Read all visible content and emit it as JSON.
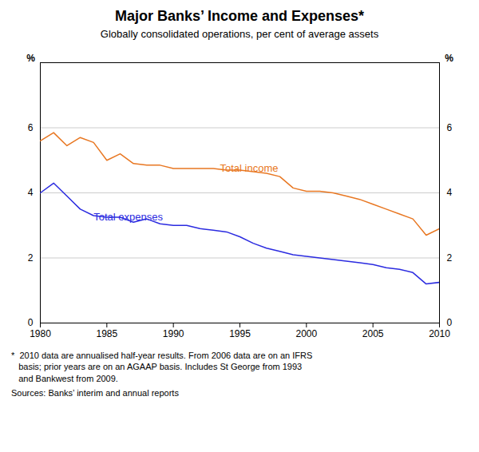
{
  "chart_data": {
    "type": "line",
    "title": "Major Banks’ Income and Expenses*",
    "subtitle": "Globally consolidated operations, per cent of average assets",
    "footnote": "*  2010 data are annualised half-year results. From 2006 data are on an IFRS\n   basis; prior years are on an AGAAP basis. Includes St George from 1993\n   and Bankwest from 2009.",
    "source": "Sources: Banks’ interim and annual reports",
    "ylabel": "%",
    "x": [
      1980,
      1981,
      1982,
      1983,
      1984,
      1985,
      1986,
      1987,
      1988,
      1989,
      1990,
      1991,
      1992,
      1993,
      1994,
      1995,
      1996,
      1997,
      1998,
      1999,
      2000,
      2001,
      2002,
      2003,
      2004,
      2005,
      2006,
      2007,
      2008,
      2009,
      2010
    ],
    "series": [
      {
        "name": "Total income",
        "color": "#E87722",
        "values": [
          5.6,
          5.85,
          5.45,
          5.7,
          5.55,
          5.0,
          5.2,
          4.9,
          4.85,
          4.85,
          4.75,
          4.75,
          4.75,
          4.75,
          4.7,
          4.7,
          4.65,
          4.6,
          4.5,
          4.15,
          4.05,
          4.05,
          4.0,
          3.9,
          3.8,
          3.65,
          3.5,
          3.35,
          3.2,
          2.7,
          2.9
        ]
      },
      {
        "name": "Total expenses",
        "color": "#2B2BE0",
        "values": [
          4.0,
          4.3,
          3.9,
          3.5,
          3.3,
          3.25,
          3.25,
          3.1,
          3.2,
          3.05,
          3.0,
          3.0,
          2.9,
          2.85,
          2.8,
          2.65,
          2.45,
          2.3,
          2.2,
          2.1,
          2.05,
          2.0,
          1.95,
          1.9,
          1.85,
          1.8,
          1.7,
          1.65,
          1.55,
          1.2,
          1.25
        ]
      }
    ],
    "annotations": [
      {
        "text": "Total income",
        "x": 1993.5,
        "y": 4.65,
        "color": "#E87722"
      },
      {
        "text": "Total expenses",
        "x": 1984.0,
        "y": 3.15,
        "color": "#2B2BE0"
      }
    ],
    "xlim": [
      1980,
      2010
    ],
    "xticks": [
      1980,
      1985,
      1990,
      1995,
      2000,
      2005,
      2010
    ],
    "ylim": [
      0,
      8
    ],
    "yticks": [
      0,
      2,
      4,
      6
    ],
    "grid": true
  }
}
